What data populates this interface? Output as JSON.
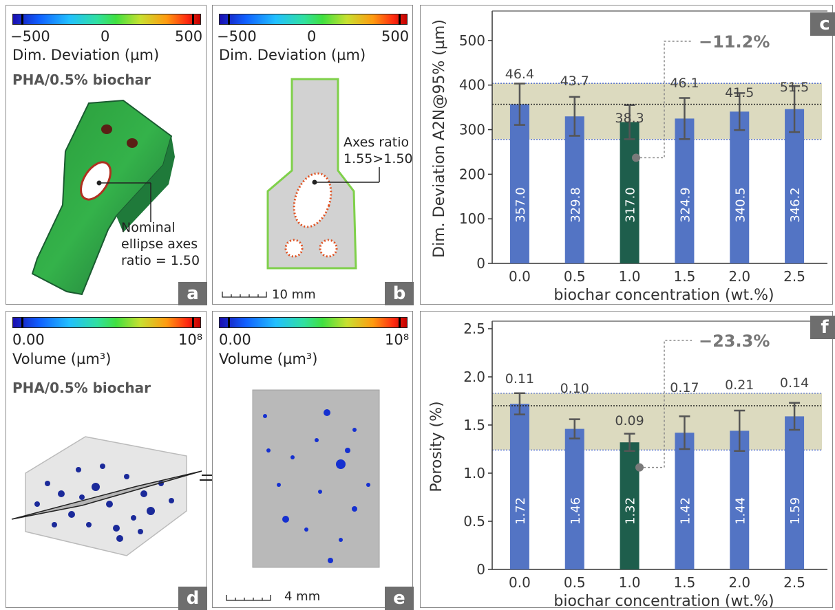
{
  "colors": {
    "blue_bar": "#5374c4",
    "green_bar": "#1e5e4c",
    "band": "#d8d6b8",
    "panel_label_bg": "#6e6e6e"
  },
  "panel_a": {
    "letter": "a",
    "cbar_min": "−500",
    "cbar_mid": "0",
    "cbar_max": "500",
    "cbar_title": "Dim. Deviation (µm)",
    "sample": "PHA/0.5% biochar",
    "annotation": [
      "Nominal",
      "ellipse axes",
      "ratio = 1.50"
    ]
  },
  "panel_b": {
    "letter": "b",
    "cbar_min": "−500",
    "cbar_mid": "0",
    "cbar_max": "500",
    "cbar_title": "Dim. Deviation (µm)",
    "annotation": [
      "Axes ratio",
      "1.55>1.50"
    ],
    "scale": "10 mm"
  },
  "panel_d": {
    "letter": "d",
    "cbar_min": "0.00",
    "cbar_max": "10⁸",
    "cbar_title": "Volume (µm³)",
    "sample": "PHA/0.5% biochar"
  },
  "panel_e": {
    "letter": "e",
    "cbar_min": "0.00",
    "cbar_max": "10⁸",
    "cbar_title": "Volume (µm³)",
    "scale": "4 mm"
  },
  "chart_data": [
    {
      "panel": "c",
      "type": "bar",
      "xlabel": "biochar concentration (wt.%)",
      "ylabel": "Dim. Deviation A2N@95% (µm)",
      "categories": [
        "0.0",
        "0.5",
        "1.0",
        "1.5",
        "2.0",
        "2.5"
      ],
      "values": [
        357.0,
        329.8,
        317.0,
        324.9,
        340.5,
        346.2
      ],
      "value_labels": [
        "357.0",
        "329.8",
        "317.0",
        "324.9",
        "340.5",
        "346.2"
      ],
      "errors": [
        46.4,
        43.7,
        38.3,
        46.1,
        41.5,
        51.5
      ],
      "error_labels": [
        "46.4",
        "43.7",
        "38.3",
        "46.1",
        "41.5",
        "51.5"
      ],
      "highlight_index": 2,
      "ylim": [
        0,
        560
      ],
      "yticks": [
        0,
        100,
        200,
        300,
        400,
        500
      ],
      "band": [
        278,
        404
      ],
      "reference_line": 357.0,
      "annotation": "−11.2%",
      "annotation_point": 237
    },
    {
      "panel": "f",
      "type": "bar",
      "xlabel": "biochar concentration (wt.%)",
      "ylabel": "Porosity (%)",
      "categories": [
        "0.0",
        "0.5",
        "1.0",
        "1.5",
        "2.0",
        "2.5"
      ],
      "values": [
        1.72,
        1.46,
        1.32,
        1.42,
        1.44,
        1.59
      ],
      "value_labels": [
        "1.72",
        "1.46",
        "1.32",
        "1.42",
        "1.44",
        "1.59"
      ],
      "errors": [
        0.11,
        0.1,
        0.09,
        0.17,
        0.21,
        0.14
      ],
      "error_labels": [
        "0.11",
        "0.10",
        "0.09",
        "0.17",
        "0.21",
        "0.14"
      ],
      "highlight_index": 2,
      "ylim": [
        0,
        2.55
      ],
      "yticks": [
        "0",
        "0.5",
        "1.0",
        "1.5",
        "2.0",
        "2.5"
      ],
      "ytick_values": [
        0,
        0.5,
        1.0,
        1.5,
        2.0,
        2.5
      ],
      "band": [
        1.24,
        1.83
      ],
      "reference_line": 1.7,
      "annotation": "−23.3%",
      "annotation_point": 1.06
    }
  ]
}
